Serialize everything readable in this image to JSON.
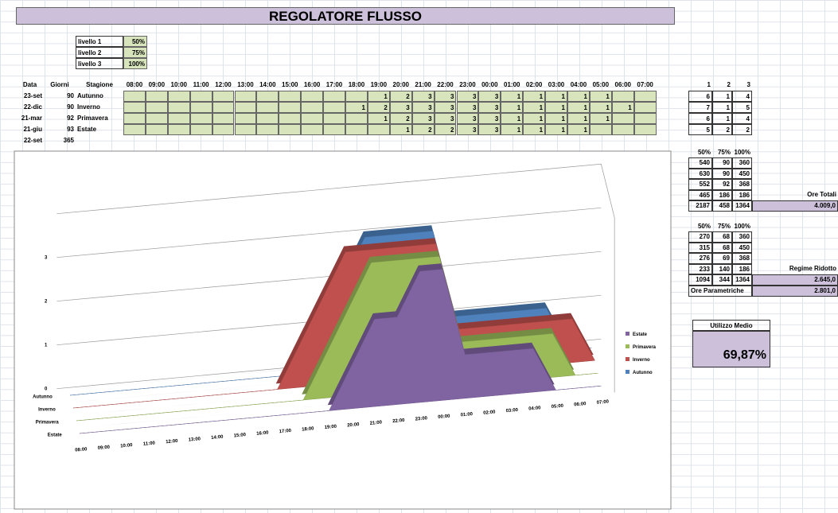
{
  "title": "REGOLATORE FLUSSO",
  "levels": [
    {
      "label": "livello 1",
      "value": "50%"
    },
    {
      "label": "livello 2",
      "value": "75%"
    },
    {
      "label": "livello 3",
      "value": "100%"
    }
  ],
  "schedule": {
    "headers": [
      "Data",
      "Giorni",
      "Stagione"
    ],
    "hours": [
      "08:00",
      "09:00",
      "10:00",
      "11:00",
      "12:00",
      "13:00",
      "14:00",
      "15:00",
      "16:00",
      "17:00",
      "18:00",
      "19:00",
      "20:00",
      "21:00",
      "22:00",
      "23:00",
      "00:00",
      "01:00",
      "02:00",
      "03:00",
      "04:00",
      "05:00",
      "06:00",
      "07:00"
    ],
    "rows": [
      {
        "date": "23-set",
        "days": 90,
        "season": "Autunno",
        "values": [
          null,
          null,
          null,
          null,
          null,
          null,
          null,
          null,
          null,
          null,
          null,
          1,
          2,
          3,
          3,
          3,
          3,
          1,
          1,
          1,
          1,
          1,
          null,
          null
        ]
      },
      {
        "date": "22-dic",
        "days": 90,
        "season": "Inverno",
        "values": [
          null,
          null,
          null,
          null,
          null,
          null,
          null,
          null,
          null,
          null,
          1,
          2,
          3,
          3,
          3,
          3,
          3,
          1,
          1,
          1,
          1,
          1,
          1,
          null
        ]
      },
      {
        "date": "21-mar",
        "days": 92,
        "season": "Primavera",
        "values": [
          null,
          null,
          null,
          null,
          null,
          null,
          null,
          null,
          null,
          null,
          null,
          1,
          2,
          3,
          3,
          3,
          3,
          1,
          1,
          1,
          1,
          1,
          null,
          null
        ]
      },
      {
        "date": "21-giu",
        "days": 93,
        "season": "Estate",
        "values": [
          null,
          null,
          null,
          null,
          null,
          null,
          null,
          null,
          null,
          null,
          null,
          null,
          1,
          2,
          2,
          3,
          3,
          1,
          1,
          1,
          1,
          null,
          null,
          null
        ]
      },
      {
        "date": "22-set",
        "days": 365
      }
    ]
  },
  "counts": {
    "headers": [
      1,
      2,
      3
    ],
    "rows": [
      [
        6,
        1,
        4
      ],
      [
        7,
        1,
        5
      ],
      [
        6,
        1,
        4
      ],
      [
        5,
        2,
        2
      ]
    ]
  },
  "full": {
    "headers": [
      "50%",
      "75%",
      "100%"
    ],
    "rows": [
      [
        540,
        90,
        360
      ],
      [
        630,
        90,
        450
      ],
      [
        552,
        92,
        368
      ],
      [
        465,
        186,
        186
      ],
      [
        2187,
        458,
        1364
      ]
    ],
    "total_label": "Ore Totali",
    "total": "4.009,0"
  },
  "reduced": {
    "headers": [
      "50%",
      "75%",
      "100%"
    ],
    "rows": [
      [
        270,
        68,
        360
      ],
      [
        315,
        68,
        450
      ],
      [
        276,
        69,
        368
      ],
      [
        233,
        140,
        186
      ],
      [
        1094,
        344,
        1364
      ]
    ],
    "total_label": "Regime Ridotto",
    "total": "2.645,0",
    "param_label": "Ore Parametriche",
    "param": "2.801,0"
  },
  "usage": {
    "label": "Utilizzo Medio",
    "value": "69,87%"
  },
  "chart": {
    "type": "area3d",
    "categories": [
      "08:00",
      "09:00",
      "10:00",
      "11:00",
      "12:00",
      "13:00",
      "14:00",
      "15:00",
      "16:00",
      "17:00",
      "18:00",
      "19:00",
      "20:00",
      "21:00",
      "22:00",
      "23:00",
      "00:00",
      "01:00",
      "02:00",
      "03:00",
      "04:00",
      "05:00",
      "06:00",
      "07:00"
    ],
    "ylim": [
      0,
      4
    ],
    "yticks": [
      0,
      1,
      2,
      3
    ],
    "series": [
      {
        "name": "Autunno",
        "color": "#4f81bd",
        "values": [
          0,
          0,
          0,
          0,
          0,
          0,
          0,
          0,
          0,
          0,
          0,
          1,
          2,
          3,
          3,
          3,
          3,
          1,
          1,
          1,
          1,
          1,
          0,
          0
        ]
      },
      {
        "name": "Inverno",
        "color": "#c0504d",
        "values": [
          0,
          0,
          0,
          0,
          0,
          0,
          0,
          0,
          0,
          0,
          1,
          2,
          3,
          3,
          3,
          3,
          3,
          1,
          1,
          1,
          1,
          1,
          1,
          0
        ]
      },
      {
        "name": "Primavera",
        "color": "#9bbb59",
        "values": [
          0,
          0,
          0,
          0,
          0,
          0,
          0,
          0,
          0,
          0,
          0,
          1,
          2,
          3,
          3,
          3,
          3,
          1,
          1,
          1,
          1,
          1,
          0,
          0
        ]
      },
      {
        "name": "Estate",
        "color": "#8064a2",
        "values": [
          0,
          0,
          0,
          0,
          0,
          0,
          0,
          0,
          0,
          0,
          0,
          0,
          1,
          2,
          2,
          3,
          3,
          1,
          1,
          1,
          1,
          0,
          0,
          0
        ]
      }
    ]
  }
}
